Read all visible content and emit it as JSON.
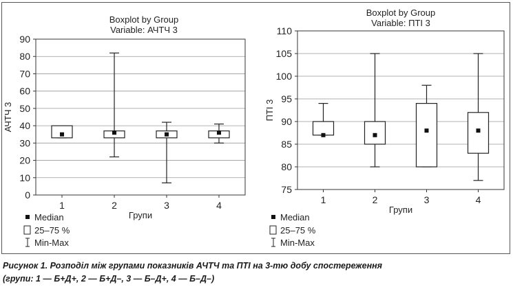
{
  "chart_data": [
    {
      "type": "boxplot",
      "title": "Boxplot by Group",
      "subtitle": "Variable: АЧТЧ 3",
      "ylabel": "АЧТЧ 3",
      "xlabel": "Групи",
      "categories": [
        "1",
        "2",
        "3",
        "4"
      ],
      "ylim": [
        0,
        90
      ],
      "yticks": [
        0,
        10,
        20,
        30,
        40,
        50,
        60,
        70,
        80,
        90
      ],
      "grid": true,
      "boxes": [
        {
          "group": "1",
          "median": 35,
          "q1": 33,
          "q3": 40,
          "min": 33,
          "max": 40
        },
        {
          "group": "2",
          "median": 36,
          "q1": 33,
          "q3": 37,
          "min": 22,
          "max": 82
        },
        {
          "group": "3",
          "median": 35,
          "q1": 33,
          "q3": 37,
          "min": 7,
          "max": 42
        },
        {
          "group": "4",
          "median": 36,
          "q1": 33,
          "q3": 37,
          "min": 30,
          "max": 41
        }
      ],
      "legend": [
        "Median",
        "25–75 %",
        "Min-Max"
      ],
      "legend_position": "bottom-left"
    },
    {
      "type": "boxplot",
      "title": "Boxplot by Group",
      "subtitle": "Variable: ПТІ 3",
      "ylabel": "ПТІ 3",
      "xlabel": "Групи",
      "categories": [
        "1",
        "2",
        "3",
        "4"
      ],
      "ylim": [
        75,
        110
      ],
      "yticks": [
        75,
        80,
        85,
        90,
        95,
        100,
        105,
        110
      ],
      "grid": true,
      "boxes": [
        {
          "group": "1",
          "median": 87,
          "q1": 87,
          "q3": 90,
          "min": 87,
          "max": 94
        },
        {
          "group": "2",
          "median": 87,
          "q1": 85,
          "q3": 90,
          "min": 80,
          "max": 105
        },
        {
          "group": "3",
          "median": 88,
          "q1": 80,
          "q3": 94,
          "min": 80,
          "max": 98
        },
        {
          "group": "4",
          "median": 88,
          "q1": 83,
          "q3": 92,
          "min": 77,
          "max": 105
        }
      ],
      "legend": [
        "Median",
        "25–75 %",
        "Min-Max"
      ],
      "legend_position": "bottom-left"
    }
  ],
  "caption": {
    "line1": "Рисунок 1. Розподіл між групами показників АЧТЧ та ПТІ на 3-тю добу спостереження",
    "line2": "(групи: 1 — Б+Д+, 2 — Б+Д–, 3 — Б–Д+, 4 — Б–Д–)"
  }
}
